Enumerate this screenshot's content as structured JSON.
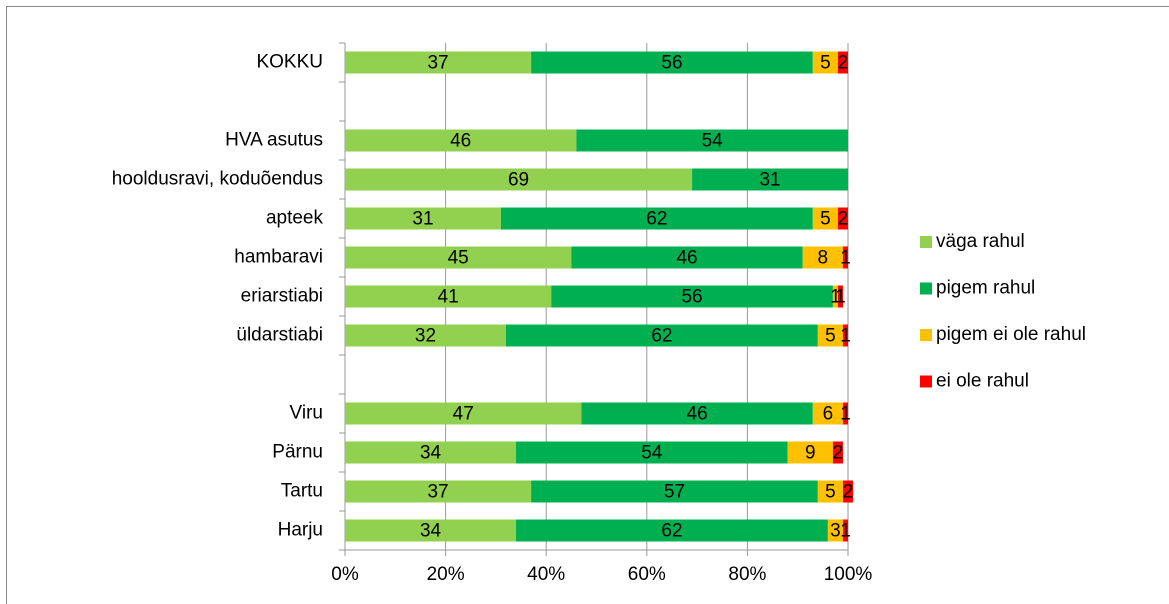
{
  "chart_data": {
    "type": "bar",
    "orientation": "horizontal",
    "stacked": true,
    "categories": [
      "KOKKU",
      null,
      "HVA asutus",
      "hooldusravi, koduõendus",
      "apteek",
      "hambaravi",
      "eriarstiabi",
      "üldarstiabi",
      null,
      "Viru",
      "Pärnu",
      "Tartu",
      "Harju"
    ],
    "series": [
      {
        "name": "väga rahul",
        "color": "#92d050",
        "values": [
          37,
          null,
          46,
          69,
          31,
          45,
          41,
          32,
          null,
          47,
          34,
          37,
          34
        ]
      },
      {
        "name": "pigem rahul",
        "color": "#00b050",
        "values": [
          56,
          null,
          54,
          31,
          62,
          46,
          56,
          62,
          null,
          46,
          54,
          57,
          62
        ]
      },
      {
        "name": "pigem ei ole rahul",
        "color": "#ffc000",
        "values": [
          5,
          null,
          null,
          null,
          5,
          8,
          1,
          5,
          null,
          6,
          9,
          5,
          3
        ]
      },
      {
        "name": "ei ole rahul",
        "color": "#ff0000",
        "values": [
          2,
          null,
          null,
          null,
          2,
          1,
          1,
          1,
          null,
          1,
          2,
          2,
          1
        ]
      }
    ],
    "xlim": [
      0,
      100
    ],
    "xticks": [
      {
        "value": 0,
        "label": "0%"
      },
      {
        "value": 20,
        "label": "20%"
      },
      {
        "value": 40,
        "label": "40%"
      },
      {
        "value": 60,
        "label": "60%"
      },
      {
        "value": 80,
        "label": "80%"
      },
      {
        "value": 100,
        "label": "100%"
      }
    ],
    "grid": true,
    "legend": "right"
  }
}
